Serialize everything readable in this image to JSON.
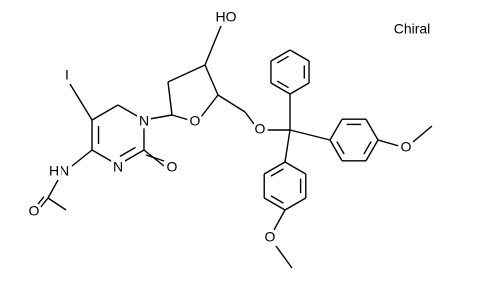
{
  "header": {
    "chiral": "Chiral"
  },
  "atoms": {
    "hydroxyl": "HO",
    "iodine": "I",
    "n1": "N",
    "n3": "N",
    "carbonyl_o": "O",
    "ring_o": "O",
    "ether_o": "O",
    "amide_n": "N",
    "amide_h": "H",
    "acetyl_o": "O",
    "methoxy_o_right": "O",
    "methoxy_o_bottom": "O"
  }
}
